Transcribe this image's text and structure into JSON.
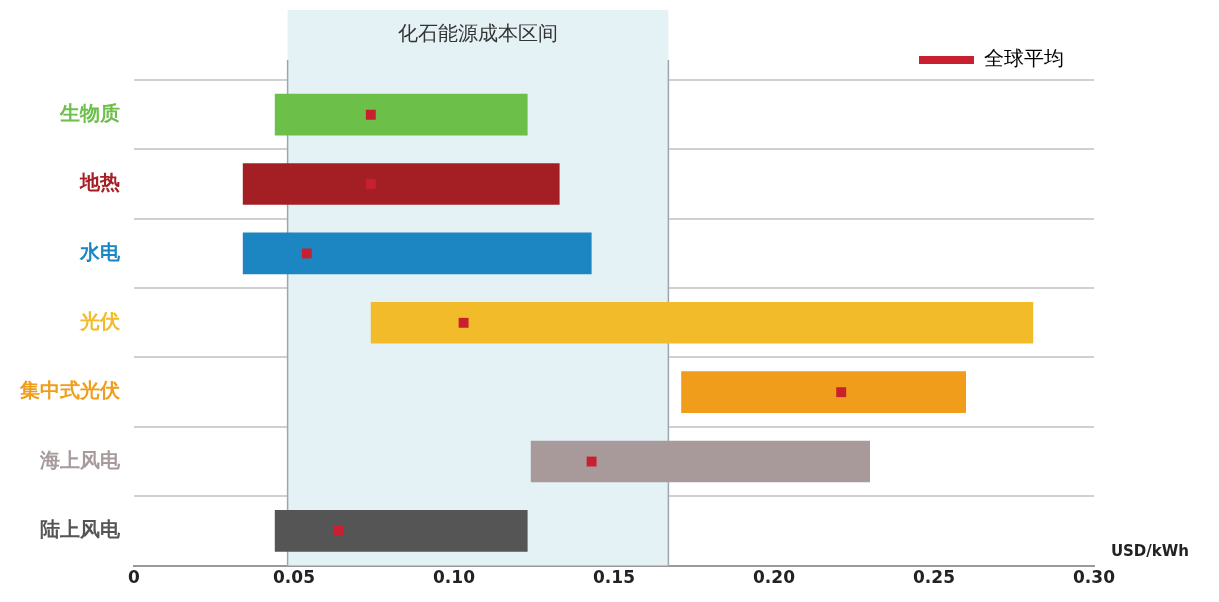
{
  "chart_data": {
    "type": "bar",
    "orientation": "horizontal",
    "xlabel": "USD/kWh",
    "categories": [
      "生物质",
      "地热",
      "水电",
      "光伏",
      "集中式光伏",
      "海上风电",
      "陆上风电"
    ],
    "series": [
      {
        "colors": [
          "#6cc04a",
          "#a31f23",
          "#1b86c2",
          "#f2bb2a",
          "#ef9d1a",
          "#a89a9a",
          "#555555"
        ],
        "base": [
          0.044,
          0.034,
          0.034,
          0.074,
          0.171,
          0.124,
          0.044
        ],
        "values": [
          0.079,
          0.099,
          0.109,
          0.207,
          0.089,
          0.106,
          0.079
        ]
      },
      {
        "type": "scatter",
        "name": "全球平均",
        "color": "#c8202f",
        "values": [
          0.074,
          0.074,
          0.054,
          0.103,
          0.221,
          0.143,
          0.064
        ]
      }
    ],
    "xlim": [
      0,
      0.3
    ],
    "xticks": [
      {
        "value": 0,
        "label": "0"
      },
      {
        "value": 0.05,
        "label": "0.05"
      },
      {
        "value": 0.1,
        "label": "0.10"
      },
      {
        "value": 0.15,
        "label": "0.15"
      },
      {
        "value": 0.2,
        "label": "0.20"
      },
      {
        "value": 0.25,
        "label": "0.25"
      },
      {
        "value": 0.3,
        "label": "0.30"
      }
    ],
    "bands": [
      {
        "axis": "x",
        "from": 0.048,
        "to": 0.167,
        "label": "化石能源成本区间",
        "color": "#e4f1f5"
      }
    ],
    "ref_lines": [
      {
        "axis": "x",
        "value": 0.048,
        "color": "#9aa8ad"
      },
      {
        "axis": "x",
        "value": 0.167,
        "color": "#9aa8ad"
      }
    ],
    "marker": "square",
    "grid": "y",
    "legend": "top right"
  }
}
